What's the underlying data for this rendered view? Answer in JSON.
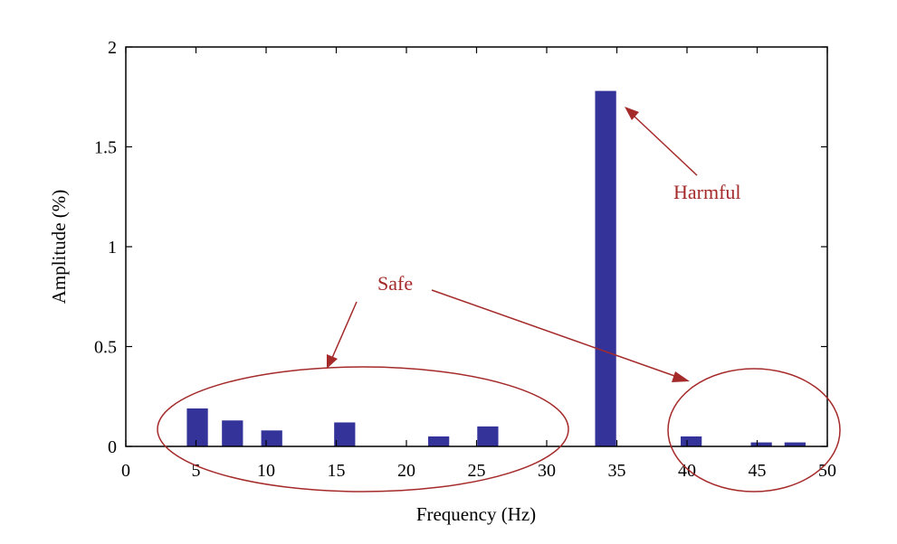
{
  "chart_data": {
    "type": "bar",
    "title": "",
    "xlabel": "Frequency (Hz)",
    "ylabel": "Amplitude (%)",
    "xlim": [
      0,
      50
    ],
    "ylim": [
      0,
      2
    ],
    "xticks": [
      0,
      5,
      10,
      15,
      20,
      25,
      30,
      35,
      40,
      45,
      50
    ],
    "yticks": [
      0,
      0.5,
      1,
      1.5,
      2
    ],
    "ytick_labels": [
      "0",
      "0.5",
      "1",
      "1.5",
      "2"
    ],
    "grid": false,
    "bar_color": "#333399",
    "bar_width": 1.5,
    "x": [
      5.1,
      7.6,
      10.4,
      15.6,
      22.3,
      25.8,
      34.2,
      40.3,
      45.3,
      47.7
    ],
    "values": [
      0.19,
      0.13,
      0.08,
      0.12,
      0.05,
      0.1,
      1.78,
      0.05,
      0.02,
      0.02
    ],
    "annotations": [
      {
        "text": "Harmful",
        "x": 43.8,
        "y": 1.28,
        "color": "#a52a2a"
      },
      {
        "text": "Safe",
        "x": 18.4,
        "y": 0.77,
        "color": "#a52a2a"
      }
    ]
  }
}
